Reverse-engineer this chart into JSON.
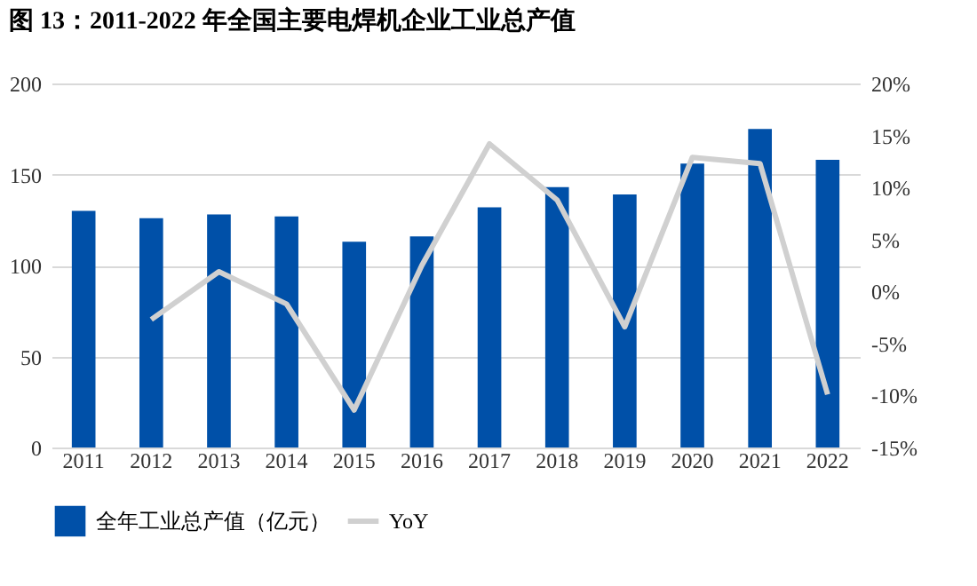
{
  "chart_data": {
    "type": "bar",
    "title": "图 13：2011-2022 年全国主要电焊机企业工业总产值",
    "categories": [
      "2011",
      "2012",
      "2013",
      "2014",
      "2015",
      "2016",
      "2017",
      "2018",
      "2019",
      "2020",
      "2021",
      "2022"
    ],
    "series": [
      {
        "name": "全年工业总产值（亿元）",
        "color": "#0050a8",
        "values": [
          130,
          126,
          128,
          127,
          113,
          116,
          132,
          143,
          139,
          156,
          175,
          158
        ]
      },
      {
        "name": "YoY",
        "type": "line",
        "axis": "y2",
        "color": "#d0d0d0",
        "values": [
          null,
          -2.7,
          1.9,
          -1.2,
          -11.4,
          2.5,
          14.2,
          8.8,
          -3.4,
          12.9,
          12.3,
          -9.9
        ]
      }
    ],
    "ylim": [
      0,
      200
    ],
    "yticks": [
      0,
      50,
      100,
      150,
      200
    ],
    "y2lim": [
      -15,
      20
    ],
    "y2ticks": [
      {
        "value": -15,
        "label": "-15%"
      },
      {
        "value": -10,
        "label": "-10%"
      },
      {
        "value": -5,
        "label": "-5%"
      },
      {
        "value": 0,
        "label": "0%"
      },
      {
        "value": 5,
        "label": "5%"
      },
      {
        "value": 10,
        "label": "10%"
      },
      {
        "value": 15,
        "label": "15%"
      },
      {
        "value": 20,
        "label": "20%"
      }
    ],
    "grid": "y",
    "legend": "bottom",
    "marker": "none",
    "line_style": "solid"
  }
}
